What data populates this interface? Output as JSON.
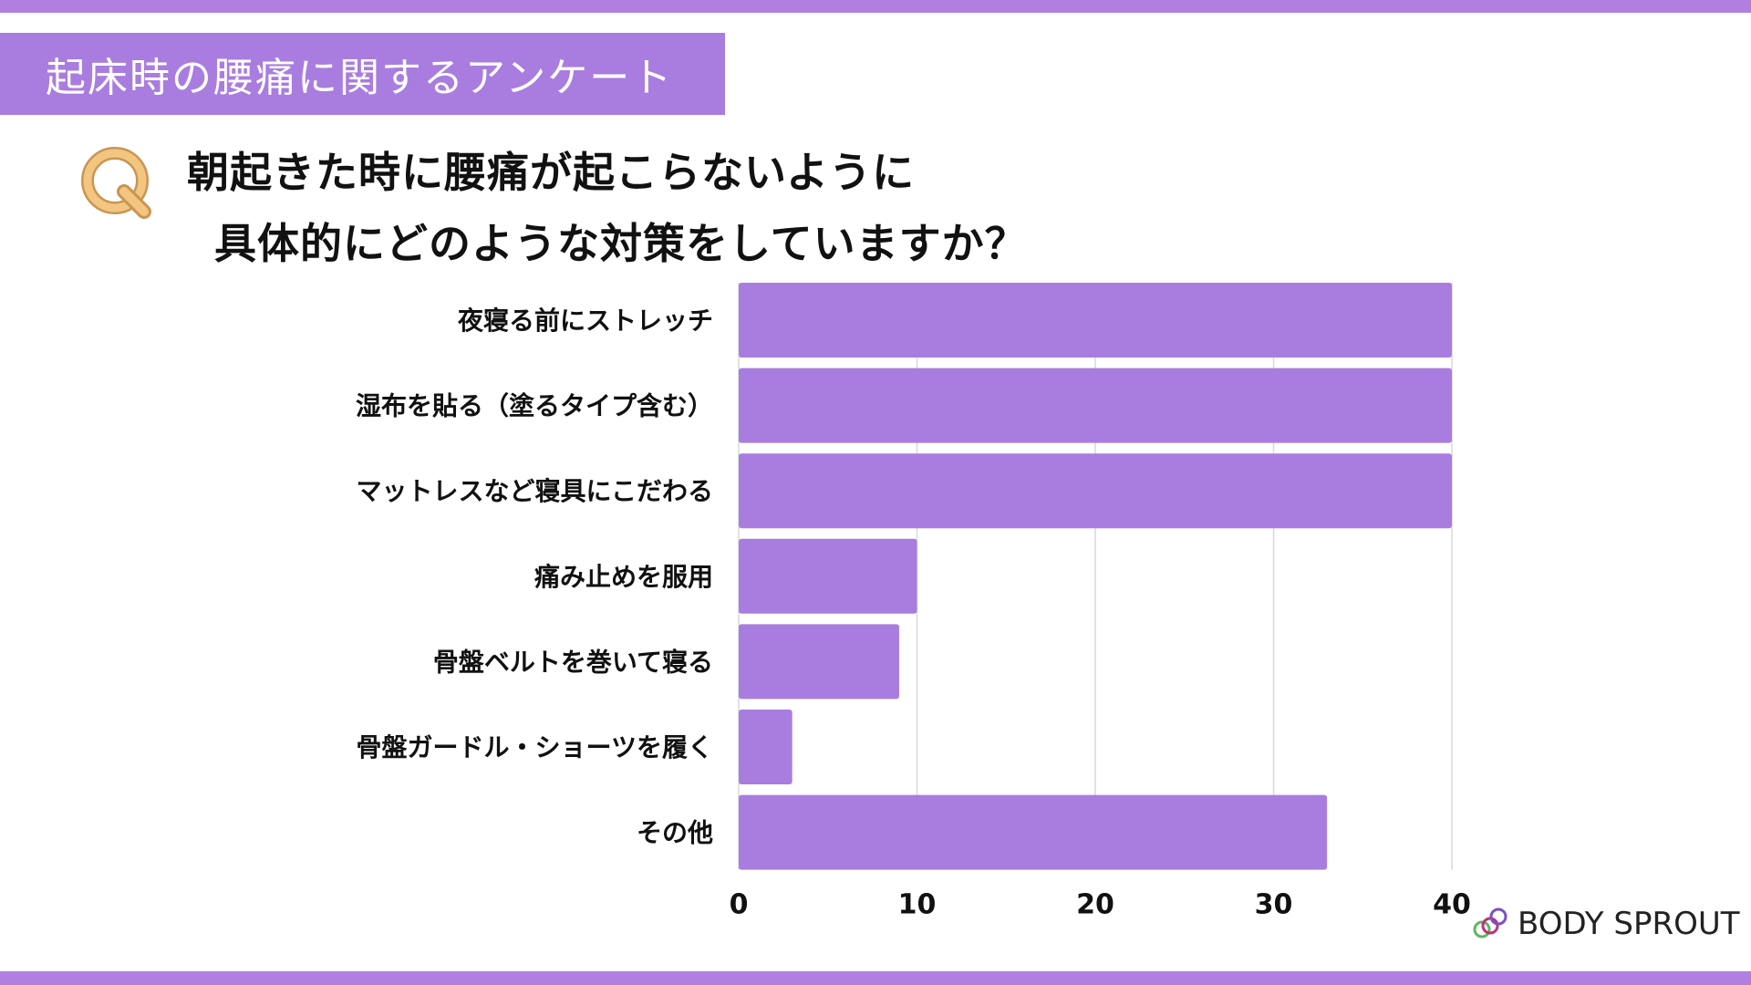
{
  "header": {
    "title": "起床時の腰痛に関するアンケート"
  },
  "question": {
    "line1": "朝起きた時に腰痛が起こらないように",
    "line2": "具体的にどのような対策をしていますか？"
  },
  "logo": {
    "text": "BODY SPROUT"
  },
  "colors": {
    "accent": "#a97ddf",
    "bar": "#a97ddf",
    "q_icon": "#e8b56a"
  },
  "chart_data": {
    "type": "bar",
    "orientation": "horizontal",
    "title": "朝起きた時に腰痛が起こらないように 具体的にどのような対策をしていますか？",
    "categories": [
      "夜寝る前にストレッチ",
      "湿布を貼る（塗るタイプ含む）",
      "マットレスなど寝具にこだわる",
      "痛み止めを服用",
      "骨盤ベルトを巻いて寝る",
      "骨盤ガードル・ショーツを履く",
      "その他"
    ],
    "values": [
      40,
      40,
      40,
      10,
      9,
      3,
      33
    ],
    "xlim": [
      0,
      40
    ],
    "xticks": [
      0,
      10,
      20,
      30,
      40
    ],
    "xlabel": "",
    "ylabel": "",
    "grid": true
  }
}
